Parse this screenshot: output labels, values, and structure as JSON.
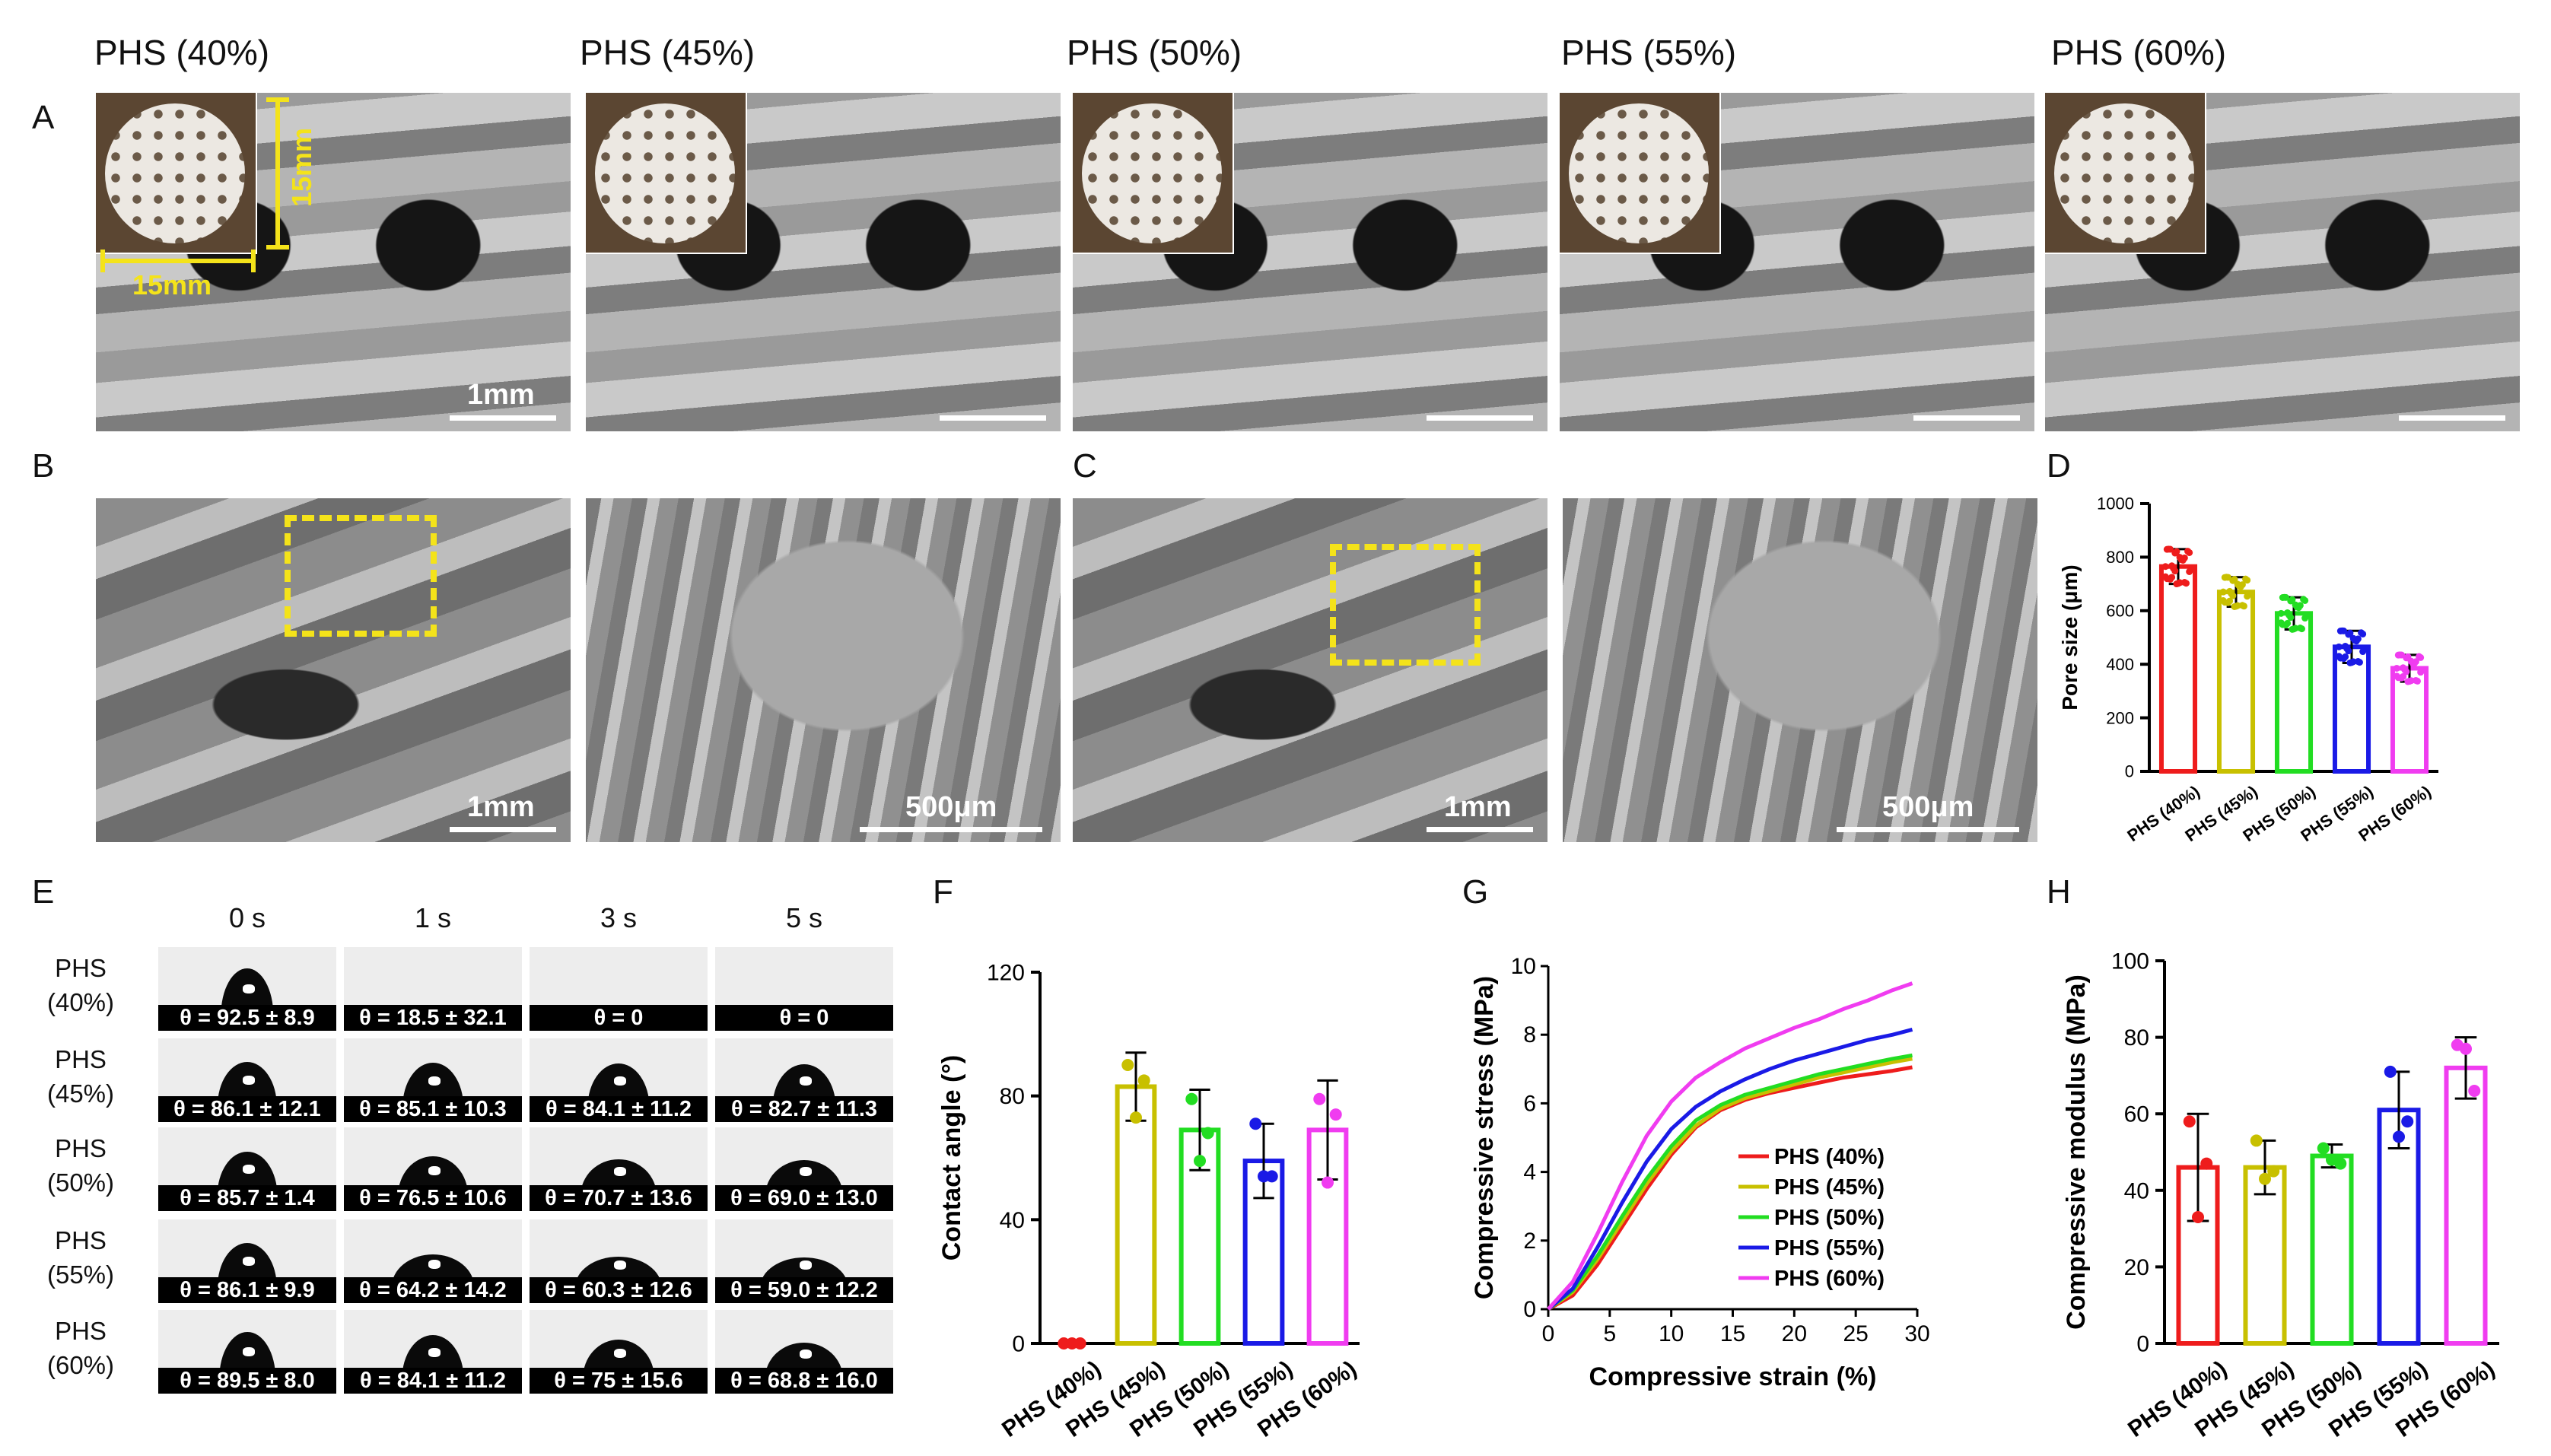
{
  "panel_letters": {
    "A": "A",
    "B": "B",
    "C": "C",
    "D": "D",
    "E": "E",
    "F": "F",
    "G": "G",
    "H": "H"
  },
  "panel_a": {
    "titles": [
      "PHS (40%)",
      "PHS (45%)",
      "PHS (50%)",
      "PHS (55%)",
      "PHS (60%)"
    ],
    "dim_width": "15mm",
    "dim_height": "15mm",
    "scale": "1mm"
  },
  "panel_b": {
    "scale_left": "1mm",
    "scale_right": "500μm"
  },
  "panel_c": {
    "scale_left": "1mm",
    "scale_right": "500μm"
  },
  "panel_e": {
    "times": [
      "0 s",
      "1 s",
      "3 s",
      "5 s"
    ],
    "rows": [
      {
        "label_top": "PHS",
        "label_bottom": "(40%)",
        "values": [
          "θ = 92.5 ± 8.9",
          "θ = 18.5 ± 32.1",
          "θ = 0",
          "θ = 0"
        ]
      },
      {
        "label_top": "PHS",
        "label_bottom": "(45%)",
        "values": [
          "θ = 86.1 ± 12.1",
          "θ = 85.1 ± 10.3",
          "θ = 84.1 ± 11.2",
          "θ = 82.7 ± 11.3"
        ]
      },
      {
        "label_top": "PHS",
        "label_bottom": "(50%)",
        "values": [
          "θ = 85.7 ± 1.4",
          "θ = 76.5 ± 10.6",
          "θ = 70.7 ± 13.6",
          "θ = 69.0 ± 13.0"
        ]
      },
      {
        "label_top": "PHS",
        "label_bottom": "(55%)",
        "values": [
          "θ = 86.1 ± 9.9",
          "θ = 64.2 ± 14.2",
          "θ = 60.3 ± 12.6",
          "θ = 59.0 ± 12.2"
        ]
      },
      {
        "label_top": "PHS",
        "label_bottom": "(60%)",
        "values": [
          "θ = 89.5 ± 8.0",
          "θ = 84.1 ± 11.2",
          "θ = 75 ± 15.6",
          "θ = 68.8 ± 16.0"
        ]
      }
    ]
  },
  "colors": {
    "PHS (40%)": "#ee1c1c",
    "PHS (45%)": "#c8c000",
    "PHS (50%)": "#22dd22",
    "PHS (55%)": "#1a1ae6",
    "PHS (60%)": "#f03cf0",
    "annotation": "#f4e31a"
  },
  "chart_data": [
    {
      "panel": "D",
      "type": "bar",
      "categories": [
        "PHS (40%)",
        "PHS (45%)",
        "PHS (50%)",
        "PHS (55%)",
        "PHS (60%)"
      ],
      "values": [
        765,
        670,
        590,
        465,
        385
      ],
      "errors": [
        65,
        55,
        60,
        60,
        50
      ],
      "ylabel": "Pore size (μm)",
      "ylim": [
        0,
        1000
      ],
      "yticks": [
        0,
        200,
        400,
        600,
        800,
        1000
      ],
      "legend": "none"
    },
    {
      "panel": "F",
      "type": "bar",
      "categories": [
        "PHS (40%)",
        "PHS (45%)",
        "PHS (50%)",
        "PHS (55%)",
        "PHS (60%)"
      ],
      "values": [
        0,
        83,
        69,
        59,
        69
      ],
      "errors": [
        0,
        11,
        13,
        12,
        16
      ],
      "points": [
        [
          0,
          0,
          0
        ],
        [
          90,
          73,
          85
        ],
        [
          79,
          59,
          68
        ],
        [
          71,
          54,
          54
        ],
        [
          79,
          52,
          74
        ]
      ],
      "ylabel": "Contact angle (°)",
      "ylim": [
        0,
        120
      ],
      "yticks": [
        0,
        40,
        80,
        120
      ],
      "legend": "none"
    },
    {
      "panel": "G",
      "type": "line",
      "xlabel": "Compressive strain (%)",
      "ylabel": "Compressive stress (MPa)",
      "xlim": [
        0,
        30
      ],
      "ylim": [
        0,
        10
      ],
      "xticks": [
        0,
        5,
        10,
        15,
        20,
        25,
        30
      ],
      "yticks": [
        0,
        2,
        4,
        6,
        8,
        10
      ],
      "legend": "bottom-right",
      "series": [
        {
          "name": "PHS (40%)",
          "x": [
            0,
            2,
            4,
            6,
            8,
            10,
            12,
            14,
            16,
            18,
            20,
            22,
            24,
            26,
            28,
            29.6
          ],
          "y": [
            0,
            0.4,
            1.3,
            2.4,
            3.5,
            4.5,
            5.3,
            5.8,
            6.1,
            6.3,
            6.45,
            6.6,
            6.75,
            6.85,
            6.95,
            7.05
          ]
        },
        {
          "name": "PHS (45%)",
          "x": [
            0,
            2,
            4,
            6,
            8,
            10,
            12,
            14,
            16,
            18,
            20,
            22,
            24,
            26,
            28,
            29.6
          ],
          "y": [
            0,
            0.5,
            1.45,
            2.55,
            3.65,
            4.6,
            5.35,
            5.85,
            6.15,
            6.35,
            6.55,
            6.75,
            6.9,
            7.05,
            7.2,
            7.3
          ]
        },
        {
          "name": "PHS (50%)",
          "x": [
            0,
            2,
            4,
            6,
            8,
            10,
            12,
            14,
            16,
            18,
            20,
            22,
            24,
            26,
            28,
            29.6
          ],
          "y": [
            0,
            0.55,
            1.55,
            2.7,
            3.8,
            4.75,
            5.5,
            5.95,
            6.25,
            6.45,
            6.65,
            6.85,
            7.0,
            7.15,
            7.3,
            7.4
          ]
        },
        {
          "name": "PHS (55%)",
          "x": [
            0,
            2,
            4,
            6,
            8,
            10,
            12,
            14,
            16,
            18,
            20,
            22,
            24,
            26,
            28,
            29.6
          ],
          "y": [
            0,
            0.6,
            1.8,
            3.1,
            4.3,
            5.25,
            5.9,
            6.35,
            6.7,
            7.0,
            7.25,
            7.45,
            7.65,
            7.85,
            8.0,
            8.15
          ]
        },
        {
          "name": "PHS (60%)",
          "x": [
            0,
            2,
            4,
            6,
            8,
            10,
            12,
            14,
            16,
            18,
            20,
            22,
            24,
            26,
            28,
            29.6
          ],
          "y": [
            0,
            0.8,
            2.2,
            3.7,
            5.05,
            6.05,
            6.75,
            7.2,
            7.6,
            7.9,
            8.2,
            8.45,
            8.75,
            9.0,
            9.3,
            9.5
          ]
        }
      ]
    },
    {
      "panel": "H",
      "type": "bar",
      "categories": [
        "PHS (40%)",
        "PHS (45%)",
        "PHS (50%)",
        "PHS (55%)",
        "PHS (60%)"
      ],
      "values": [
        46,
        46,
        49,
        61,
        72
      ],
      "errors": [
        14,
        7,
        3,
        10,
        8
      ],
      "points": [
        [
          58,
          33,
          47
        ],
        [
          53,
          43,
          45
        ],
        [
          51,
          48,
          47
        ],
        [
          71,
          54,
          58
        ],
        [
          78,
          77,
          66
        ]
      ],
      "ylabel": "Compressive modulus (MPa)",
      "ylim": [
        0,
        100
      ],
      "yticks": [
        0,
        20,
        40,
        60,
        80,
        100
      ],
      "legend": "none"
    }
  ]
}
